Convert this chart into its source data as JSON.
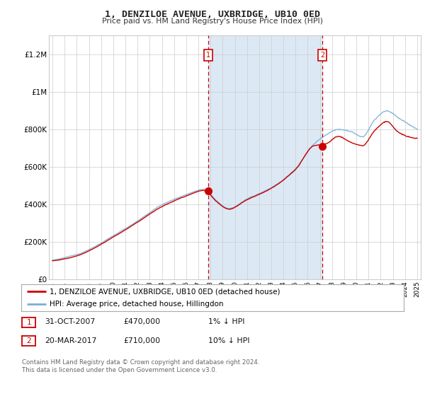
{
  "title": "1, DENZILOE AVENUE, UXBRIDGE, UB10 0ED",
  "subtitle": "Price paid vs. HM Land Registry's House Price Index (HPI)",
  "ylim": [
    0,
    1300000
  ],
  "yticks": [
    0,
    200000,
    400000,
    600000,
    800000,
    1000000,
    1200000
  ],
  "ytick_labels": [
    "£0",
    "£200K",
    "£400K",
    "£600K",
    "£800K",
    "£1M",
    "£1.2M"
  ],
  "hpi_color": "#7bafd4",
  "price_color": "#cc0000",
  "shade_color": "#dce9f5",
  "marker1_x": 2007.83,
  "marker1_y": 470000,
  "marker2_x": 2017.22,
  "marker2_y": 710000,
  "legend_line1": "1, DENZILOE AVENUE, UXBRIDGE, UB10 0ED (detached house)",
  "legend_line2": "HPI: Average price, detached house, Hillingdon",
  "table_row1": [
    "1",
    "31-OCT-2007",
    "£470,000",
    "1% ↓ HPI"
  ],
  "table_row2": [
    "2",
    "20-MAR-2017",
    "£710,000",
    "10% ↓ HPI"
  ],
  "footer": "Contains HM Land Registry data © Crown copyright and database right 2024.\nThis data is licensed under the Open Government Licence v3.0.",
  "background_color": "#ffffff",
  "grid_color": "#cccccc",
  "xlim_left": 1994.7,
  "xlim_right": 2025.3
}
